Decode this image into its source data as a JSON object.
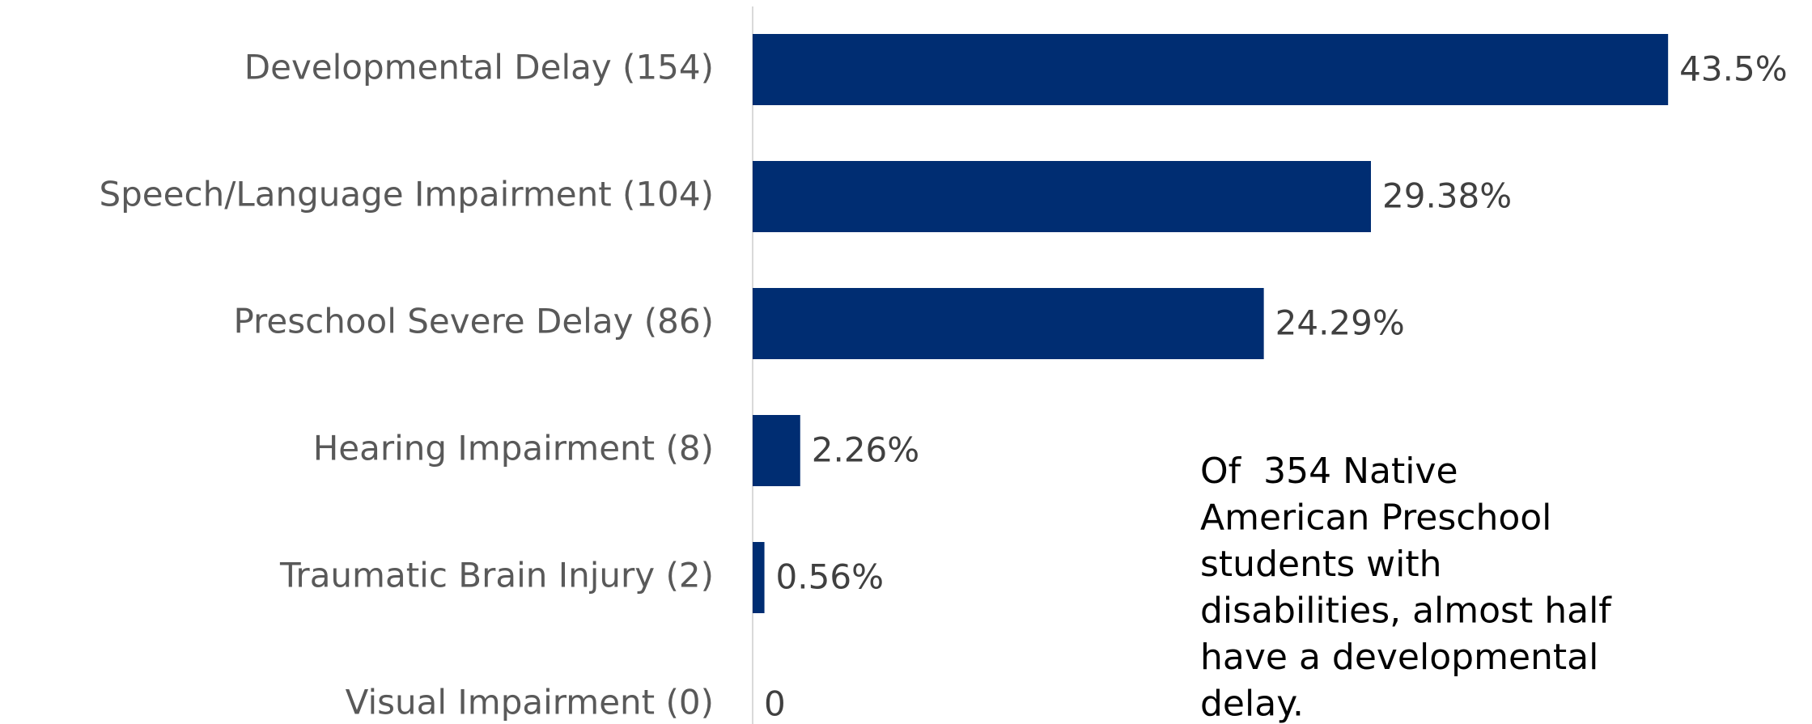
{
  "chart_data": {
    "type": "bar",
    "orientation": "horizontal",
    "categories": [
      "Developmental Delay (154)",
      "Speech/Language Impairment (104)",
      "Preschool Severe Delay (86)",
      "Hearing Impairment (8)",
      "Traumatic Brain Injury (2)",
      "Visual Impairment (0)"
    ],
    "values": [
      43.5,
      29.38,
      24.29,
      2.26,
      0.56,
      0
    ],
    "value_labels": [
      "43.5%",
      "29.38%",
      "24.29%",
      "2.26%",
      "0.56%",
      "0"
    ],
    "color": "#002d72",
    "xlim": [
      0,
      48.8
    ],
    "annotation": [
      "Of  354 Native",
      "American Preschool",
      "students with",
      "disabilities, almost half",
      "have a developmental",
      "delay."
    ]
  }
}
